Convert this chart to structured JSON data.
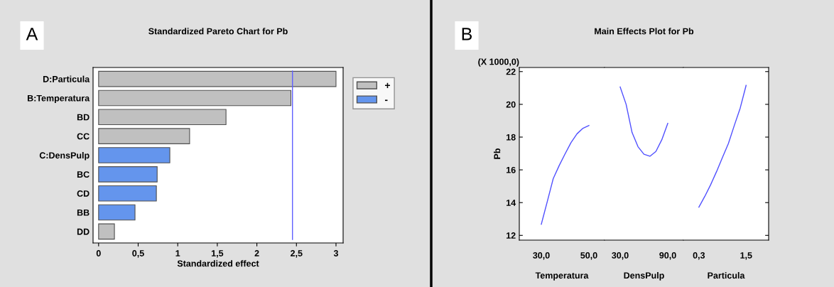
{
  "chart_data": [
    {
      "type": "bar",
      "orientation": "horizontal",
      "title": "Standardized Pareto Chart for Pb",
      "xlabel": "Standardized effect",
      "categories": [
        "D:Particula",
        "B:Temperatura",
        "BD",
        "CC",
        "C:DensPulp",
        "BC",
        "CD",
        "BB",
        "DD"
      ],
      "series": [
        {
          "name": "+",
          "color": "#c0c0c0",
          "values": [
            3.0,
            2.43,
            1.61,
            1.15,
            null,
            null,
            null,
            null,
            0.2
          ]
        },
        {
          "name": "-",
          "color": "#6495ed",
          "values": [
            null,
            null,
            null,
            null,
            0.9,
            0.74,
            0.73,
            0.46,
            null
          ]
        }
      ],
      "xlim": [
        -0.07,
        3.09
      ],
      "xticks": [
        0,
        {
          "value": 0.5,
          "label": "0,5"
        },
        1,
        {
          "value": 1.5,
          "label": "1,5"
        },
        2,
        {
          "value": 2.5,
          "label": "2,5"
        },
        3
      ],
      "ref_lines": [
        {
          "axis": "x",
          "value": 2.45,
          "color": "#6060ff"
        }
      ],
      "legend": "right",
      "grid": false,
      "annotations": [
        "A"
      ]
    },
    {
      "type": "line",
      "ylabel": "Pb",
      "xlabel": "Temperatura",
      "series": [
        {
          "color": "#5050ff",
          "x": [
            30,
            32.5,
            35,
            37.5,
            40,
            42.5,
            45,
            47.5,
            50
          ],
          "values": [
            12.68,
            14.06,
            15.46,
            16.26,
            16.98,
            17.67,
            18.2,
            18.54,
            18.71
          ]
        }
      ],
      "xlim": [
        20.75,
        56.57
      ],
      "xticks": [
        {
          "value": 30,
          "label": "30,0"
        },
        {
          "value": 50,
          "label": "50,0"
        }
      ],
      "ylim": [
        11.71,
        22.25
      ],
      "yticks": [
        12,
        14,
        16,
        18,
        20,
        22
      ],
      "marker": "none",
      "line_style": "solid",
      "grid": false,
      "annotations": [
        "B",
        "(X 1000,0)"
      ]
    },
    {
      "type": "line",
      "title": "Main Effects Plot for Pb",
      "xlabel": "DensPulp",
      "series": [
        {
          "color": "#5050ff",
          "x": [
            30,
            37.5,
            45,
            52.5,
            60,
            67.5,
            75,
            82.5,
            90
          ],
          "values": [
            21.06,
            20.0,
            18.28,
            17.41,
            16.95,
            16.83,
            17.12,
            17.84,
            18.84
          ]
        }
      ],
      "xlim": [
        10.3,
        109.7
      ],
      "xticks": [
        {
          "value": 30,
          "label": "30,0"
        },
        {
          "value": 90,
          "label": "90,0"
        }
      ],
      "ylim": [
        11.71,
        22.25
      ],
      "tick_labels": "x",
      "marker": "none",
      "line_style": "solid",
      "grid": false
    },
    {
      "type": "line",
      "xlabel": "Particula",
      "series": [
        {
          "color": "#5050ff",
          "x": [
            0.3,
            0.45,
            0.6,
            0.75,
            0.9,
            1.05,
            1.2,
            1.35,
            1.5
          ],
          "values": [
            13.72,
            14.38,
            15.1,
            15.9,
            16.76,
            17.61,
            18.71,
            19.77,
            21.16
          ]
        }
      ],
      "xlim": [
        -0.094,
        2.073
      ],
      "xticks": [
        {
          "value": 0.3,
          "label": "0,3"
        },
        {
          "value": 1.5,
          "label": "1,5"
        }
      ],
      "ylim": [
        11.71,
        22.25
      ],
      "yticks": [
        12,
        14,
        16,
        18,
        20,
        22
      ],
      "tick_labels": "x",
      "marker": "none",
      "line_style": "solid",
      "grid": false
    }
  ]
}
